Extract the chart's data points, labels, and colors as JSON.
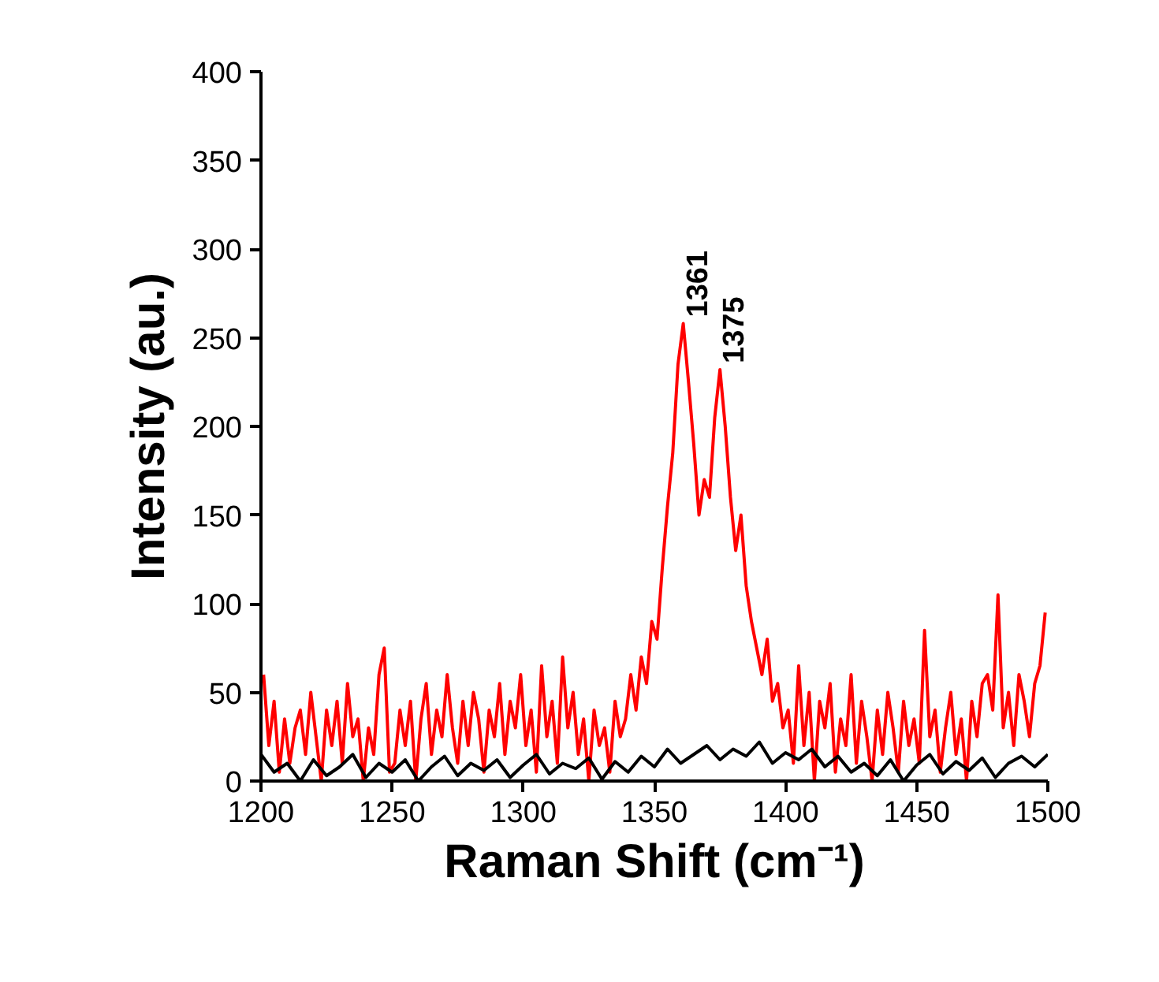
{
  "chart_data": {
    "type": "line",
    "xlabel": "Raman Shift (cm⁻¹)",
    "ylabel": "Intensity (au.)",
    "xlim": [
      1200,
      1500
    ],
    "xticks": [
      1200,
      1250,
      1300,
      1350,
      1400,
      1450,
      1500
    ],
    "ylim": [
      0,
      400
    ],
    "yticks": [
      0,
      50,
      100,
      150,
      200,
      250,
      300,
      350,
      400
    ],
    "grid": false,
    "series": [
      {
        "color": "#ff0000",
        "x": [
          1201,
          1203,
          1205,
          1207,
          1209,
          1211,
          1213,
          1215,
          1217,
          1219,
          1221,
          1223,
          1225,
          1227,
          1229,
          1231,
          1233,
          1235,
          1237,
          1239,
          1241,
          1243,
          1245,
          1247,
          1249,
          1251,
          1253,
          1255,
          1257,
          1259,
          1261,
          1263,
          1265,
          1267,
          1269,
          1271,
          1273,
          1275,
          1277,
          1279,
          1281,
          1283,
          1285,
          1287,
          1289,
          1291,
          1293,
          1295,
          1297,
          1299,
          1301,
          1303,
          1305,
          1307,
          1309,
          1311,
          1313,
          1315,
          1317,
          1319,
          1321,
          1323,
          1325,
          1327,
          1329,
          1331,
          1333,
          1335,
          1337,
          1339,
          1341,
          1343,
          1345,
          1347,
          1349,
          1351,
          1353,
          1355,
          1357,
          1359,
          1361,
          1363,
          1365,
          1367,
          1369,
          1371,
          1373,
          1375,
          1377,
          1379,
          1381,
          1383,
          1385,
          1387,
          1389,
          1391,
          1393,
          1395,
          1397,
          1399,
          1401,
          1403,
          1405,
          1407,
          1409,
          1411,
          1413,
          1415,
          1417,
          1419,
          1421,
          1423,
          1425,
          1427,
          1429,
          1431,
          1433,
          1435,
          1437,
          1439,
          1441,
          1443,
          1445,
          1447,
          1449,
          1451,
          1453,
          1455,
          1457,
          1459,
          1461,
          1463,
          1465,
          1467,
          1469,
          1471,
          1473,
          1475,
          1477,
          1479,
          1481,
          1483,
          1485,
          1487,
          1489,
          1491,
          1493,
          1495,
          1497,
          1499
        ],
        "values": [
          60,
          20,
          45,
          5,
          35,
          10,
          30,
          40,
          15,
          50,
          25,
          0,
          40,
          20,
          45,
          10,
          55,
          25,
          35,
          0,
          30,
          15,
          60,
          75,
          5,
          10,
          40,
          20,
          45,
          0,
          35,
          55,
          15,
          40,
          25,
          60,
          30,
          10,
          45,
          20,
          50,
          35,
          5,
          40,
          25,
          55,
          15,
          45,
          30,
          60,
          20,
          40,
          5,
          65,
          25,
          45,
          10,
          70,
          30,
          50,
          15,
          35,
          0,
          40,
          20,
          30,
          5,
          45,
          25,
          35,
          60,
          40,
          70,
          55,
          90,
          80,
          120,
          155,
          185,
          235,
          258,
          225,
          190,
          150,
          170,
          160,
          205,
          232,
          200,
          160,
          130,
          150,
          110,
          90,
          75,
          60,
          80,
          45,
          55,
          30,
          40,
          10,
          65,
          20,
          50,
          0,
          45,
          30,
          55,
          5,
          35,
          20,
          60,
          10,
          45,
          25,
          0,
          40,
          15,
          50,
          30,
          5,
          45,
          20,
          35,
          10,
          85,
          25,
          40,
          5,
          30,
          50,
          15,
          35,
          0,
          45,
          25,
          55,
          60,
          40,
          105,
          30,
          50,
          20,
          60,
          45,
          25,
          55,
          65,
          95
        ]
      },
      {
        "color": "#000000",
        "x": [
          1200,
          1205,
          1210,
          1215,
          1220,
          1225,
          1230,
          1235,
          1240,
          1245,
          1250,
          1255,
          1260,
          1265,
          1270,
          1275,
          1280,
          1285,
          1290,
          1295,
          1300,
          1305,
          1310,
          1315,
          1320,
          1325,
          1330,
          1335,
          1340,
          1345,
          1350,
          1355,
          1360,
          1365,
          1370,
          1375,
          1380,
          1385,
          1390,
          1395,
          1400,
          1405,
          1410,
          1415,
          1420,
          1425,
          1430,
          1435,
          1440,
          1445,
          1450,
          1455,
          1460,
          1465,
          1470,
          1475,
          1480,
          1485,
          1490,
          1495,
          1500
        ],
        "values": [
          15,
          5,
          10,
          0,
          12,
          3,
          8,
          15,
          2,
          10,
          5,
          12,
          0,
          8,
          14,
          3,
          10,
          6,
          12,
          2,
          9,
          15,
          4,
          10,
          7,
          13,
          1,
          11,
          5,
          14,
          8,
          18,
          10,
          15,
          20,
          12,
          18,
          14,
          22,
          10,
          16,
          12,
          18,
          8,
          14,
          5,
          10,
          3,
          12,
          0,
          9,
          15,
          4,
          11,
          6,
          13,
          2,
          10,
          14,
          8,
          15
        ]
      }
    ],
    "annotations": [
      {
        "text": "1361",
        "x": 1361,
        "y": 258
      },
      {
        "text": "1375",
        "x": 1375,
        "y": 232
      }
    ]
  }
}
